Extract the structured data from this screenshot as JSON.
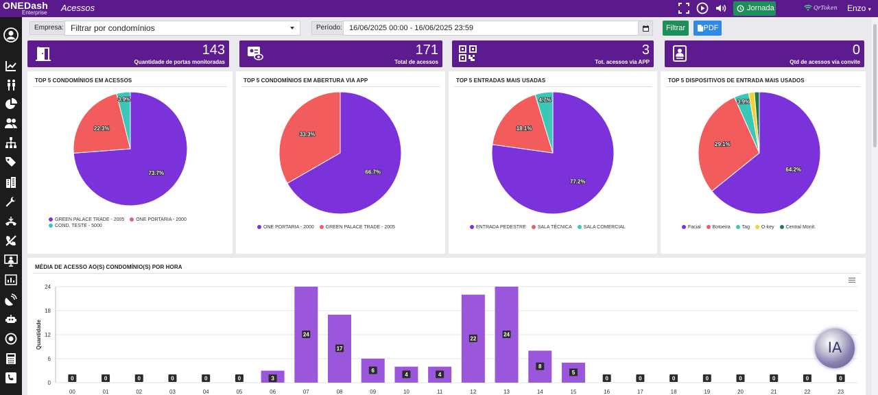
{
  "header": {
    "logo_main": "ONEDash",
    "logo_sub": "Enterprise",
    "page_title": "Acessos",
    "jornada_label": "Jornada",
    "qrtoken_label": "QrToken",
    "user_name": "Enzo"
  },
  "sidebar": {
    "items": [
      "user-circle-icon",
      "line-chart-icon",
      "people-walking-icon",
      "pie-chart-icon",
      "users-icon",
      "sitemap-icon",
      "tags-icon",
      "building-icon",
      "wrench-icon",
      "phone-route-icon",
      "phone-slash-icon",
      "monitor-user-icon",
      "bar-chart-icon",
      "satellite-icon",
      "robot-icon",
      "globe-icon",
      "calculator-icon",
      "phone-box-icon"
    ]
  },
  "filters": {
    "empresa_label": "Empresa:",
    "empresa_value": "Filtrar por condomínios",
    "periodo_label": "Período:",
    "periodo_value": "16/06/2025 00:00 - 16/06/2025 23:59",
    "filter_button": "Filtrar",
    "pdf_button": "PDF"
  },
  "kpis": [
    {
      "value": "143",
      "label": "Quantidade de portas monitoradas",
      "icon": "door-icon"
    },
    {
      "value": "171",
      "label": "Total de acessos",
      "icon": "id-card-icon"
    },
    {
      "value": "3",
      "label": "Tot. acessos via APP",
      "icon": "qrcode-icon"
    },
    {
      "value": "0",
      "label": "Qtd de acessos via convite",
      "icon": "invite-icon"
    }
  ],
  "colors": {
    "purple": "#7b32db",
    "red": "#f25c5c",
    "teal": "#3ac7b8",
    "yellow": "#f2d233",
    "dark_green": "#1e7a4a",
    "header_bg": "#5a1a8c",
    "bar": "#9a57dc"
  },
  "pies": [
    {
      "title": "TOP 5 CONDOMÍNIOS EM ACESSOS",
      "slices": [
        {
          "label": "GREEN PALACE TRADE - 2005",
          "pct": 73.7,
          "text": "73.7%",
          "color": "#7b32db"
        },
        {
          "label": "ONE PORTARIA - 2000",
          "pct": 22.3,
          "text": "22.3%",
          "color": "#f25c5c"
        },
        {
          "label": "COND. TESTE - 5000",
          "pct": 3.9,
          "text": "3.9%",
          "color": "#3ac7b8"
        }
      ]
    },
    {
      "title": "TOP 5 CONDOMÍNIOS EM ABERTURA VIA APP",
      "slices": [
        {
          "label": "ONE PORTARIA - 2000",
          "pct": 66.7,
          "text": "66.7%",
          "color": "#7b32db"
        },
        {
          "label": "GREEN PALACE TRADE - 2005",
          "pct": 33.3,
          "text": "33.3%",
          "color": "#f25c5c"
        }
      ]
    },
    {
      "title": "TOP 5 ENTRADAS MAIS USADAS",
      "slices": [
        {
          "label": "ENTRADA PEDESTRE",
          "pct": 77.2,
          "text": "77.2%",
          "color": "#7b32db"
        },
        {
          "label": "SALA TÉCNICA",
          "pct": 18.1,
          "text": "18.1%",
          "color": "#f25c5c"
        },
        {
          "label": "SALA COMERCIAL",
          "pct": 4.7,
          "text": "4.7%",
          "color": "#3ac7b8"
        }
      ]
    },
    {
      "title": "TOP 5 DISPOSITIVOS DE ENTRADA MAIS USADOS",
      "slices": [
        {
          "label": "Facial",
          "pct": 64.2,
          "text": "64.2%",
          "color": "#7b32db"
        },
        {
          "label": "Botoeira",
          "pct": 29.1,
          "text": "29.1%",
          "color": "#f25c5c"
        },
        {
          "label": "Tag",
          "pct": 3.9,
          "text": "3.9%",
          "color": "#3ac7b8"
        },
        {
          "label": "O-key",
          "pct": 1.5,
          "text": "",
          "color": "#f2d233"
        },
        {
          "label": "Central Monit.",
          "pct": 1.3,
          "text": "",
          "color": "#1e7a4a"
        }
      ]
    }
  ],
  "chart_data": {
    "type": "bar",
    "title": "MÉDIA DE ACESSO AO(S) CONDOMÍNIO(S) POR HORA",
    "ylabel": "Quantidade",
    "xlabel": "",
    "categories": [
      "00",
      "01",
      "02",
      "03",
      "04",
      "05",
      "06",
      "07",
      "08",
      "09",
      "10",
      "11",
      "12",
      "13",
      "14",
      "15",
      "16",
      "17",
      "18",
      "19",
      "20",
      "21",
      "22",
      "23"
    ],
    "values": [
      0,
      0,
      0,
      0,
      0,
      0,
      3,
      24,
      17,
      6,
      4,
      4,
      22,
      24,
      8,
      5,
      0,
      0,
      0,
      0,
      0,
      0,
      0,
      0
    ],
    "ylim": [
      0,
      24
    ],
    "yticks": [
      0,
      6,
      12,
      18,
      24
    ],
    "grid": true,
    "legend": "none"
  },
  "ia_badge": "IA"
}
